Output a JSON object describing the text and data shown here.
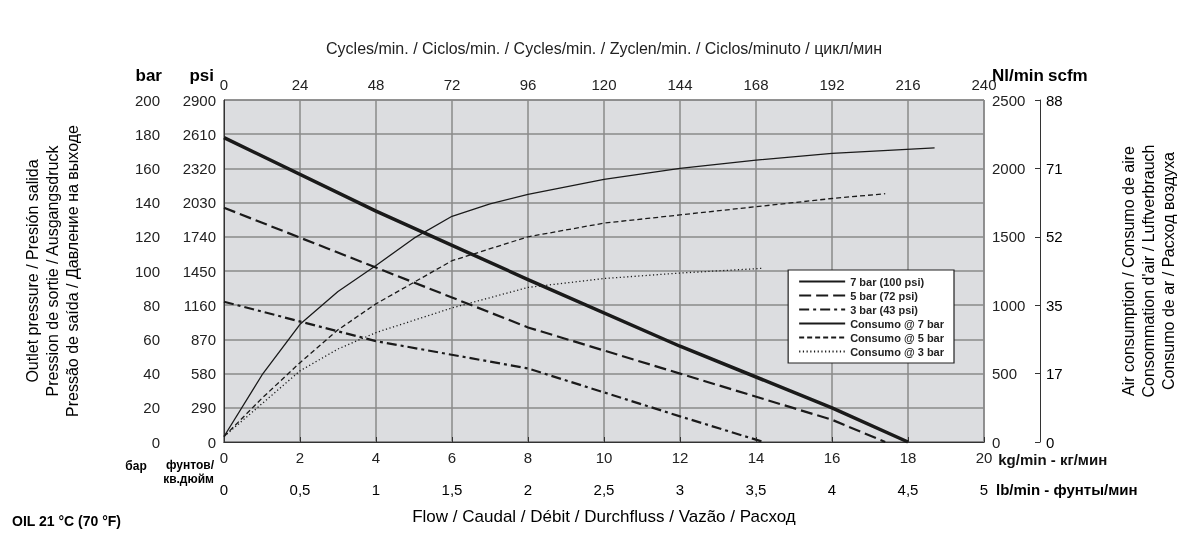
{
  "chart_data": {
    "type": "line",
    "xlabel": "kg/min - кг/мин",
    "x2label": "Cycles/min. / Ciclos/min. / Cycles/min. / Zyclen/min. / Ciclos/minuto / цикл/мин",
    "ylabel": "bar",
    "y2label": "psi",
    "y3label": "Nl/min",
    "xlim": [
      0,
      20
    ],
    "xticks": [
      0,
      2,
      4,
      6,
      8,
      10,
      12,
      14,
      16,
      18,
      20
    ],
    "x2lim": [
      0,
      240
    ],
    "x2ticks": [
      0,
      24,
      48,
      72,
      96,
      120,
      144,
      168,
      192,
      216,
      240
    ],
    "ylim": [
      0,
      200
    ],
    "yticks": [
      0,
      20,
      40,
      60,
      80,
      100,
      120,
      140,
      160,
      180,
      200
    ],
    "y2lim": [
      0,
      2900
    ],
    "y2ticks": [
      0,
      290,
      580,
      870,
      1160,
      1450,
      1740,
      2030,
      2320,
      2610,
      2900
    ],
    "y3lim": [
      0,
      2500
    ],
    "y3ticks": [
      0,
      500,
      1000,
      1500,
      2000,
      2500
    ],
    "grid": true,
    "legend": "right",
    "marker": "none",
    "series": [
      {
        "name": "7 bar (100 psi)",
        "color": "#1a1a1a",
        "line_style": "solid",
        "x": [
          0,
          4,
          8,
          12,
          16,
          18
        ],
        "values": [
          178,
          135,
          95,
          56,
          20,
          0
        ]
      },
      {
        "name": "5 bar (72 psi)",
        "color": "#1a1a1a",
        "line_style": "dashed",
        "x": [
          0,
          4,
          8,
          12,
          16,
          17.4
        ],
        "values": [
          137,
          102,
          67,
          40,
          13,
          0
        ]
      },
      {
        "name": "3 bar (43 psi)",
        "color": "#1a1a1a",
        "line_style": "dashdot",
        "x": [
          0,
          4,
          8,
          12,
          14.2
        ],
        "values": [
          82,
          59,
          43,
          15,
          0
        ]
      },
      {
        "name": "Consumo @ 7 bar",
        "color": "#1a1a1a",
        "line_style": "solid",
        "axis": "y3",
        "x": [
          0,
          1,
          2,
          3,
          4,
          5,
          6,
          7,
          8,
          10,
          12,
          14,
          16,
          18.7
        ],
        "values": [
          40,
          490,
          860,
          1100,
          1290,
          1490,
          1650,
          1740,
          1810,
          1920,
          2000,
          2060,
          2110,
          2150
        ]
      },
      {
        "name": "Consumo @ 5 bar",
        "color": "#1a1a1a",
        "line_style": "dashed",
        "axis": "y3",
        "x": [
          0,
          1,
          2,
          3,
          4,
          6,
          8,
          10,
          12,
          14,
          16,
          17.4
        ],
        "values": [
          40,
          320,
          580,
          820,
          1010,
          1325,
          1500,
          1600,
          1660,
          1720,
          1780,
          1815
        ]
      },
      {
        "name": "Consumo @ 3 bar",
        "color": "#1a1a1a",
        "line_style": "dotted",
        "axis": "y3",
        "x": [
          0,
          1,
          2,
          3,
          4,
          6,
          8,
          10,
          12,
          14.2
        ],
        "values": [
          40,
          280,
          520,
          680,
          800,
          980,
          1130,
          1195,
          1235,
          1270
        ]
      }
    ],
    "annotations": [
      "Flow / Caudal / Débit / Durchfluss / Vazão / Расход",
      "бар",
      "фунтов/\nкв.дюйм",
      "Outlet pressure / Presión salida\nPression de sortie / Ausgangsdruck\nPressão de saída / Давление на выходе",
      "Air consumption / Consumo de aire\nConsommation d'air / Luftverbrauch\nConsumo de ar / Расход воздуха",
      "OIL 21 °C (70 °F)",
      "scfm",
      "0",
      "17",
      "35",
      "52",
      "71",
      "88",
      "lb/min - фунты/мин",
      "0",
      "0,5",
      "1",
      "1,5",
      "2",
      "2,5",
      "3",
      "3,5",
      "4",
      "4,5",
      "5"
    ]
  }
}
